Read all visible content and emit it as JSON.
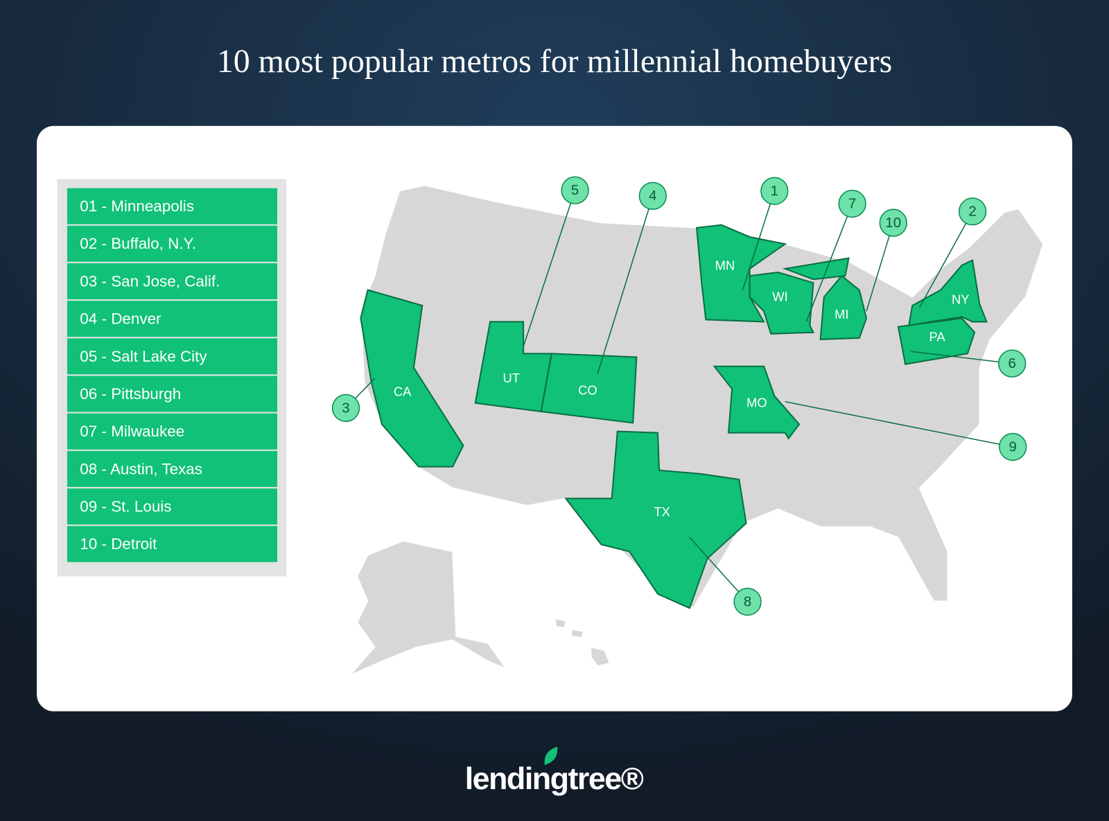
{
  "title": "10 most popular metros for millennial homebuyers",
  "list": [
    "01 - Minneapolis",
    "02 - Buffalo, N.Y.",
    "03 - San Jose, Calif.",
    "04 - Denver",
    "05 - Salt Lake City",
    "06 - Pittsburgh",
    "07 - Milwaukee",
    "08 - Austin, Texas",
    "09 - St. Louis",
    "10 - Detroit"
  ],
  "map": {
    "states": [
      "MN",
      "WI",
      "MI",
      "NY",
      "PA",
      "MO",
      "CO",
      "UT",
      "CA",
      "TX"
    ],
    "callouts": [
      "1",
      "2",
      "3",
      "4",
      "5",
      "6",
      "7",
      "8",
      "9",
      "10"
    ]
  },
  "brand": "lendingtree®"
}
